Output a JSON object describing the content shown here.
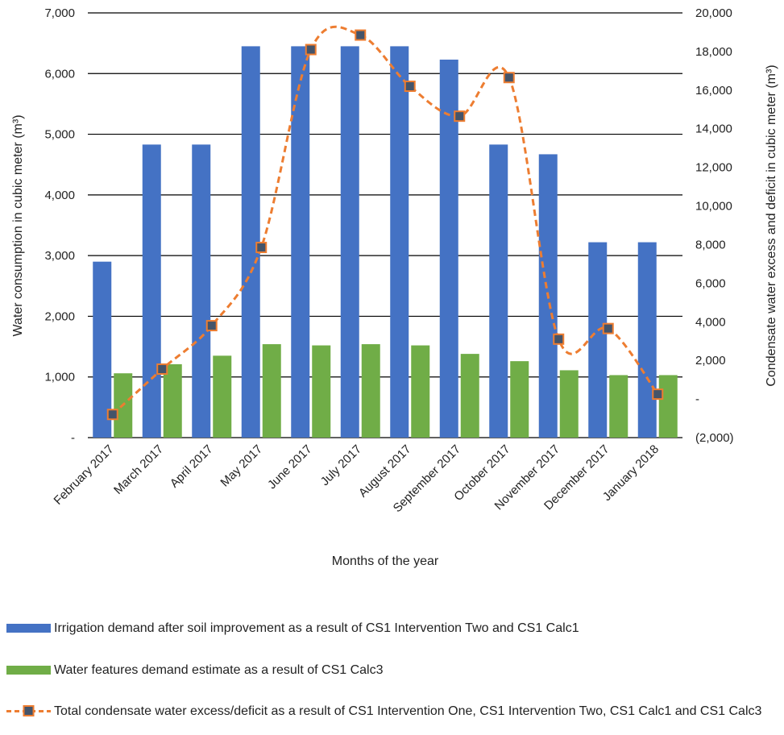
{
  "chart_data": {
    "type": "bar",
    "categories": [
      "February 2017",
      "March 2017",
      "April 2017",
      "May 2017",
      "June 2017",
      "July 2017",
      "August 2017",
      "September 2017",
      "October 2017",
      "November 2017",
      "December 2017",
      "January 2018"
    ],
    "xlabel": "Months of the year",
    "ylabel": "Water consumption in cubic meter (m³)",
    "ylabel_right": "Condensate water excess and deficit in cubic meter (m³)",
    "ylim": [
      0,
      7000
    ],
    "ylim_right": [
      -2000,
      20000
    ],
    "yticks": [
      {
        "value": 0,
        "label": "-"
      },
      {
        "value": 1000,
        "label": "1,000"
      },
      {
        "value": 2000,
        "label": "2,000"
      },
      {
        "value": 3000,
        "label": "3,000"
      },
      {
        "value": 4000,
        "label": "4,000"
      },
      {
        "value": 5000,
        "label": "5,000"
      },
      {
        "value": 6000,
        "label": "6,000"
      },
      {
        "value": 7000,
        "label": "7,000"
      }
    ],
    "yticks_right": [
      {
        "value": -2000,
        "label": "(2,000)"
      },
      {
        "value": 0,
        "label": "-"
      },
      {
        "value": 2000,
        "label": "2,000"
      },
      {
        "value": 4000,
        "label": "4,000"
      },
      {
        "value": 6000,
        "label": "6,000"
      },
      {
        "value": 8000,
        "label": "8,000"
      },
      {
        "value": 10000,
        "label": "10,000"
      },
      {
        "value": 12000,
        "label": "12,000"
      },
      {
        "value": 14000,
        "label": "14,000"
      },
      {
        "value": 16000,
        "label": "16,000"
      },
      {
        "value": 18000,
        "label": "18,000"
      },
      {
        "value": 20000,
        "label": "20,000"
      }
    ],
    "grid": true,
    "legend_position": "bottom",
    "series": [
      {
        "name": "Irrigation demand after soil improvement as a result of CS1 Intervention Two and  CS1 Calc1",
        "type": "bar",
        "axis": "left",
        "color": "#4472C4",
        "values": [
          2900,
          4830,
          4830,
          6450,
          6450,
          6450,
          6450,
          6230,
          4830,
          4670,
          3220,
          3220
        ]
      },
      {
        "name": "Water features demand estimate as a result of CS1 Calc3",
        "type": "bar",
        "axis": "left",
        "color": "#70AD47",
        "values": [
          1060,
          1210,
          1350,
          1540,
          1520,
          1540,
          1520,
          1380,
          1260,
          1110,
          1030,
          1030
        ]
      },
      {
        "name": "Total condensate water excess/deficit as a result of CS1 Intervention One, CS1 Intervention Two, CS1 Calc1 and CS1 Calc3",
        "type": "line",
        "axis": "right",
        "color": "#ED7D31",
        "marker_color": "#44546A",
        "values": [
          -800,
          1550,
          3800,
          7850,
          18100,
          18850,
          16200,
          14650,
          16650,
          3100,
          3650,
          250
        ]
      }
    ]
  }
}
